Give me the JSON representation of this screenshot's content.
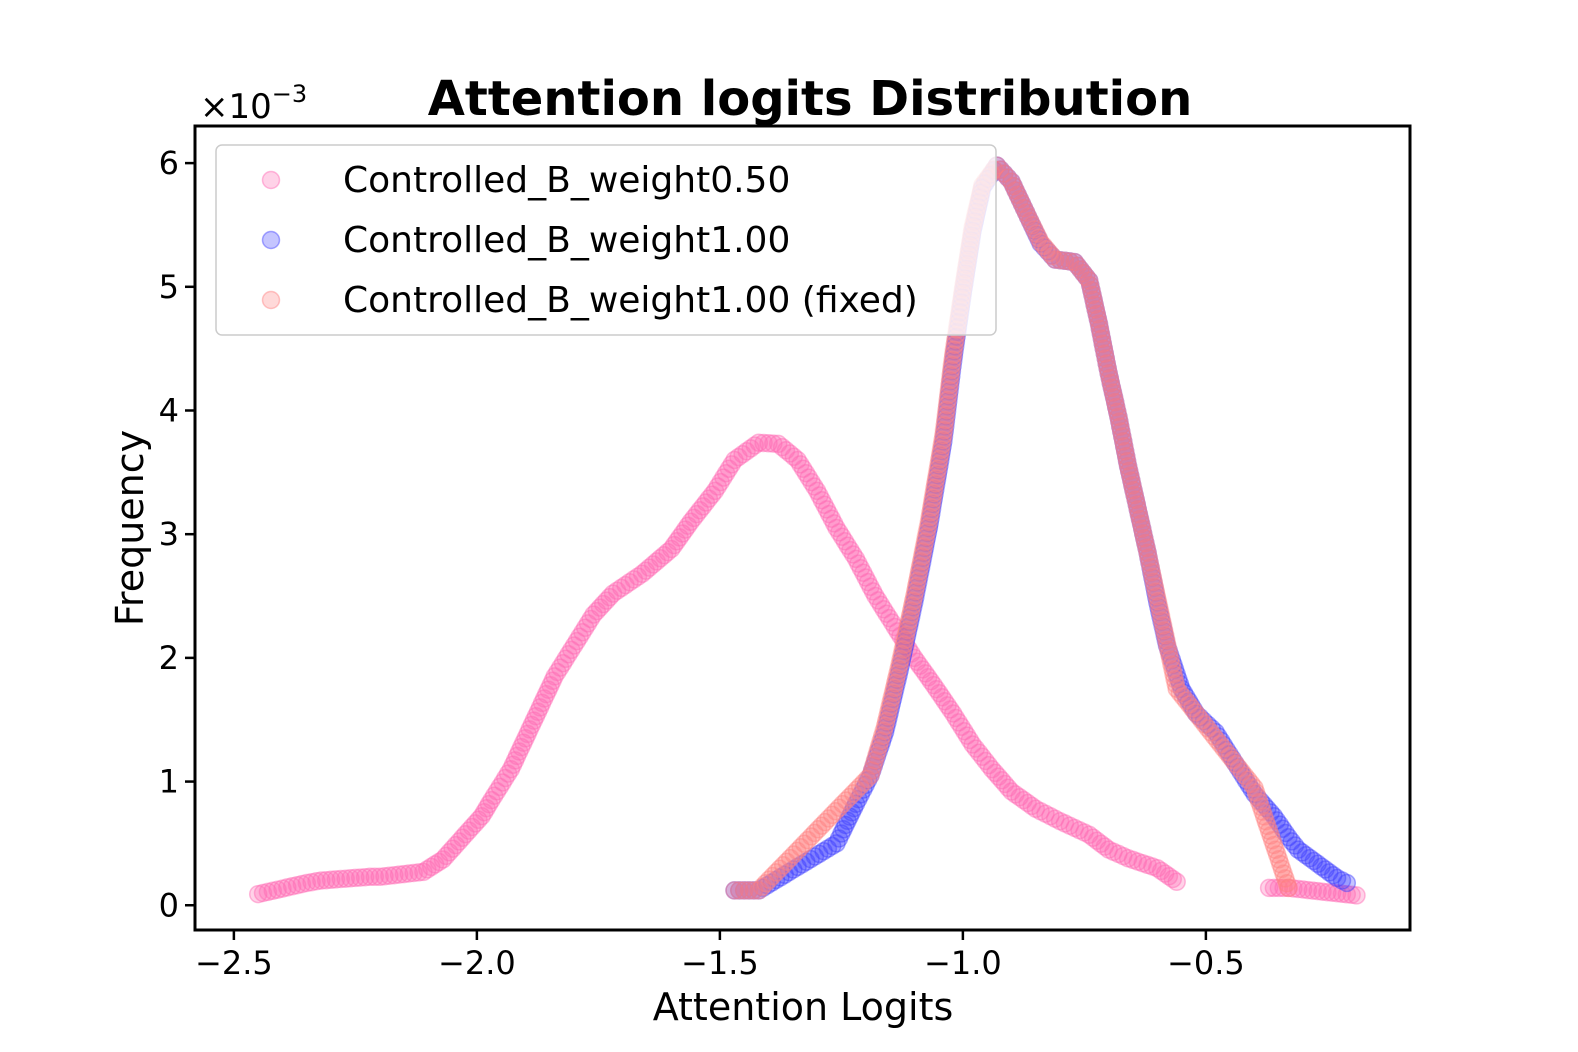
{
  "chart_data": {
    "type": "scatter",
    "title": "Attention logits Distribution",
    "xlabel": "Attention Logits",
    "ylabel": "Frequency",
    "y_multiplier": "×10",
    "y_multiplier_exp": "−3",
    "xlim": [
      -2.58,
      -0.08
    ],
    "ylim": [
      -0.2,
      6.3
    ],
    "xticks": [
      -2.5,
      -2.0,
      -1.5,
      -1.0,
      -0.5
    ],
    "xtick_labels": [
      "−2.5",
      "−2.0",
      "−1.5",
      "−1.0",
      "−0.5"
    ],
    "yticks": [
      0,
      1,
      2,
      3,
      4,
      5,
      6
    ],
    "ytick_labels": [
      "0",
      "1",
      "2",
      "3",
      "4",
      "5",
      "6"
    ],
    "legend_position": "upper-left",
    "series": [
      {
        "name": "Controlled_B_weight0.50",
        "color": "#ff69b4",
        "anchors": [
          [
            -2.45,
            0.09
          ],
          [
            -2.35,
            0.18
          ],
          [
            -2.32,
            0.2
          ],
          [
            -2.22,
            0.23
          ],
          [
            -2.2,
            0.23
          ],
          [
            -2.11,
            0.27
          ],
          [
            -2.07,
            0.37
          ],
          [
            -1.99,
            0.72
          ],
          [
            -1.97,
            0.85
          ],
          [
            -1.93,
            1.1
          ],
          [
            -1.9,
            1.35
          ],
          [
            -1.87,
            1.6
          ],
          [
            -1.84,
            1.85
          ],
          [
            -1.8,
            2.1
          ],
          [
            -1.76,
            2.35
          ],
          [
            -1.72,
            2.52
          ],
          [
            -1.66,
            2.68
          ],
          [
            -1.6,
            2.88
          ],
          [
            -1.56,
            3.1
          ],
          [
            -1.51,
            3.35
          ],
          [
            -1.47,
            3.6
          ],
          [
            -1.42,
            3.74
          ],
          [
            -1.38,
            3.73
          ],
          [
            -1.34,
            3.6
          ],
          [
            -1.3,
            3.35
          ],
          [
            -1.26,
            3.05
          ],
          [
            -1.22,
            2.8
          ],
          [
            -1.18,
            2.5
          ],
          [
            -1.14,
            2.25
          ],
          [
            -1.1,
            2.0
          ],
          [
            -1.06,
            1.78
          ],
          [
            -1.02,
            1.55
          ],
          [
            -0.98,
            1.3
          ],
          [
            -0.94,
            1.1
          ],
          [
            -0.9,
            0.92
          ],
          [
            -0.85,
            0.78
          ],
          [
            -0.8,
            0.68
          ],
          [
            -0.74,
            0.57
          ],
          [
            -0.7,
            0.45
          ],
          [
            -0.66,
            0.38
          ],
          [
            -0.6,
            0.3
          ],
          [
            -0.56,
            0.19
          ],
          [
            -0.37,
            0.14
          ],
          [
            -0.33,
            0.14
          ],
          [
            -0.19,
            0.08
          ]
        ]
      },
      {
        "name": "Controlled_B_weight1.00",
        "color": "#4040ff",
        "anchors": [
          [
            -1.47,
            0.12
          ],
          [
            -1.42,
            0.12
          ],
          [
            -1.26,
            0.5
          ],
          [
            -1.25,
            0.58
          ],
          [
            -1.22,
            0.82
          ],
          [
            -1.19,
            1.05
          ],
          [
            -1.16,
            1.4
          ],
          [
            -1.13,
            1.9
          ],
          [
            -1.1,
            2.45
          ],
          [
            -1.07,
            3.05
          ],
          [
            -1.04,
            3.75
          ],
          [
            -1.02,
            4.4
          ],
          [
            -1.0,
            4.95
          ],
          [
            -0.98,
            5.45
          ],
          [
            -0.96,
            5.8
          ],
          [
            -0.93,
            5.98
          ],
          [
            -0.9,
            5.85
          ],
          [
            -0.87,
            5.6
          ],
          [
            -0.84,
            5.35
          ],
          [
            -0.81,
            5.22
          ],
          [
            -0.77,
            5.2
          ],
          [
            -0.74,
            5.05
          ],
          [
            -0.72,
            4.7
          ],
          [
            -0.7,
            4.3
          ],
          [
            -0.68,
            3.95
          ],
          [
            -0.66,
            3.55
          ],
          [
            -0.64,
            3.2
          ],
          [
            -0.62,
            2.85
          ],
          [
            -0.6,
            2.45
          ],
          [
            -0.58,
            2.1
          ],
          [
            -0.55,
            1.75
          ],
          [
            -0.52,
            1.55
          ],
          [
            -0.48,
            1.4
          ],
          [
            -0.44,
            1.15
          ],
          [
            -0.4,
            0.9
          ],
          [
            -0.36,
            0.72
          ],
          [
            -0.33,
            0.55
          ],
          [
            -0.31,
            0.45
          ],
          [
            -0.23,
            0.22
          ],
          [
            -0.21,
            0.18
          ]
        ]
      },
      {
        "name": "Controlled_B_weight1.00 (fixed)",
        "color": "#ff8080",
        "anchors": [
          [
            -1.47,
            0.12
          ],
          [
            -1.42,
            0.12
          ],
          [
            -1.19,
            1.05
          ],
          [
            -1.16,
            1.45
          ],
          [
            -1.13,
            1.95
          ],
          [
            -1.1,
            2.5
          ],
          [
            -1.07,
            3.1
          ],
          [
            -1.04,
            3.8
          ],
          [
            -1.02,
            4.45
          ],
          [
            -1.0,
            4.98
          ],
          [
            -0.98,
            5.48
          ],
          [
            -0.96,
            5.82
          ],
          [
            -0.93,
            5.98
          ],
          [
            -0.9,
            5.85
          ],
          [
            -0.87,
            5.6
          ],
          [
            -0.84,
            5.36
          ],
          [
            -0.81,
            5.22
          ],
          [
            -0.77,
            5.2
          ],
          [
            -0.74,
            5.05
          ],
          [
            -0.72,
            4.7
          ],
          [
            -0.7,
            4.3
          ],
          [
            -0.68,
            3.95
          ],
          [
            -0.66,
            3.55
          ],
          [
            -0.64,
            3.2
          ],
          [
            -0.62,
            2.85
          ],
          [
            -0.56,
            1.75
          ],
          [
            -0.4,
            0.95
          ],
          [
            -0.33,
            0.14
          ]
        ]
      }
    ]
  }
}
